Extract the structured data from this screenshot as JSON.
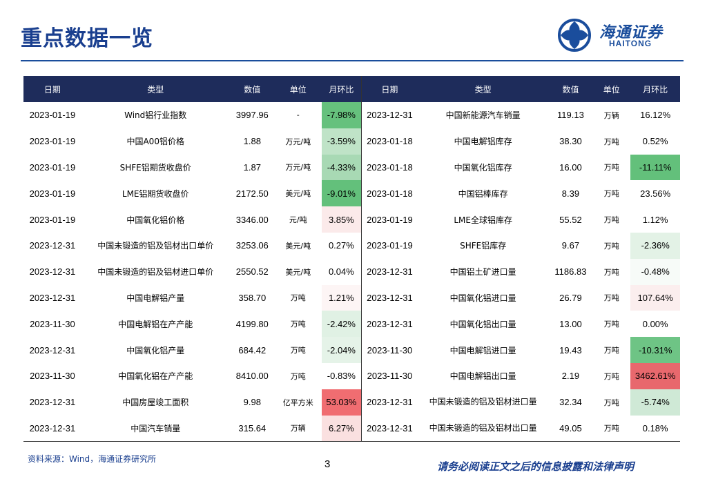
{
  "page": {
    "title": "重点数据一览",
    "logo_cn": "海通证券",
    "logo_en": "HAITONG",
    "source": "资料来源：Wind，海通证券研究所",
    "page_number": "3",
    "disclaimer": "请务必阅读正文之后的信息披露和法律声明"
  },
  "colors": {
    "header_bg": "#1e2c5b",
    "brand_blue": "#1a4d9c"
  },
  "table": {
    "headers": [
      "日期",
      "类型",
      "数值",
      "单位",
      "月环比",
      "日期",
      "类型",
      "数值",
      "单位",
      "月环比"
    ],
    "rows": [
      {
        "l": {
          "date": "2023-01-19",
          "type": "Wind铝行业指数",
          "value": "3997.96",
          "unit": "-",
          "pct": "-7.98%",
          "bg": "#66c17d"
        },
        "r": {
          "date": "2023-12-31",
          "type": "中国新能源汽车销量",
          "value": "119.13",
          "unit": "万辆",
          "pct": "16.12%",
          "bg": "#ffffff"
        }
      },
      {
        "l": {
          "date": "2023-01-19",
          "type": "中国A00铝价格",
          "value": "1.88",
          "unit": "万元/吨",
          "pct": "-3.59%",
          "bg": "#bfe3c7"
        },
        "r": {
          "date": "2023-01-18",
          "type": "中国电解铝库存",
          "value": "38.30",
          "unit": "万吨",
          "pct": "0.52%",
          "bg": "#ffffff"
        }
      },
      {
        "l": {
          "date": "2023-01-19",
          "type": "SHFE铝期货收盘价",
          "value": "1.87",
          "unit": "万元/吨",
          "pct": "-4.33%",
          "bg": "#a8d9b4"
        },
        "r": {
          "date": "2023-01-18",
          "type": "中国氧化铝库存",
          "value": "16.00",
          "unit": "万吨",
          "pct": "-11.11%",
          "bg": "#63c07b"
        }
      },
      {
        "l": {
          "date": "2023-01-19",
          "type": "LME铝期货收盘价",
          "value": "2172.50",
          "unit": "美元/吨",
          "pct": "-9.01%",
          "bg": "#63c07b"
        },
        "r": {
          "date": "2023-01-18",
          "type": "中国铝棒库存",
          "value": "8.39",
          "unit": "万吨",
          "pct": "23.56%",
          "bg": "#ffffff"
        }
      },
      {
        "l": {
          "date": "2023-01-19",
          "type": "中国氧化铝价格",
          "value": "3346.00",
          "unit": "元/吨",
          "pct": "3.85%",
          "bg": "#fbeaea"
        },
        "r": {
          "date": "2023-01-19",
          "type": "LME全球铝库存",
          "value": "55.52",
          "unit": "万吨",
          "pct": "1.12%",
          "bg": "#ffffff"
        }
      },
      {
        "l": {
          "date": "2023-12-31",
          "type": "中国未锻造的铝及铝材出口单价",
          "value": "3253.06",
          "unit": "美元/吨",
          "pct": "0.27%",
          "bg": "#ffffff"
        },
        "r": {
          "date": "2023-01-19",
          "type": "SHFE铝库存",
          "value": "9.67",
          "unit": "万吨",
          "pct": "-2.36%",
          "bg": "#e3f2e6"
        }
      },
      {
        "l": {
          "date": "2023-12-31",
          "type": "中国未锻造的铝及铝材进口单价",
          "value": "2550.52",
          "unit": "美元/吨",
          "pct": "0.04%",
          "bg": "#ffffff"
        },
        "r": {
          "date": "2023-12-31",
          "type": "中国铝土矿进口量",
          "value": "1186.83",
          "unit": "万吨",
          "pct": "-0.48%",
          "bg": "#f7fbf8"
        }
      },
      {
        "l": {
          "date": "2023-12-31",
          "type": "中国电解铝产量",
          "value": "358.70",
          "unit": "万吨",
          "pct": "1.21%",
          "bg": "#fdf5f5"
        },
        "r": {
          "date": "2023-12-31",
          "type": "中国氧化铝进口量",
          "value": "26.79",
          "unit": "万吨",
          "pct": "107.64%",
          "bg": "#fbeeee"
        }
      },
      {
        "l": {
          "date": "2023-11-30",
          "type": "中国电解铝在产产能",
          "value": "4199.80",
          "unit": "万吨",
          "pct": "-2.42%",
          "bg": "#e0f1e4"
        },
        "r": {
          "date": "2023-12-31",
          "type": "中国氧化铝出口量",
          "value": "13.00",
          "unit": "万吨",
          "pct": "0.00%",
          "bg": "#ffffff"
        }
      },
      {
        "l": {
          "date": "2023-12-31",
          "type": "中国氧化铝产量",
          "value": "684.42",
          "unit": "万吨",
          "pct": "-2.04%",
          "bg": "#e5f3e8"
        },
        "r": {
          "date": "2023-11-30",
          "type": "中国电解铝进口量",
          "value": "19.43",
          "unit": "万吨",
          "pct": "-10.31%",
          "bg": "#6ec485"
        }
      },
      {
        "l": {
          "date": "2023-11-30",
          "type": "中国氧化铝在产产能",
          "value": "8410.00",
          "unit": "万吨",
          "pct": "-0.83%",
          "bg": "#ffffff"
        },
        "r": {
          "date": "2023-11-30",
          "type": "中国电解铝出口量",
          "value": "2.19",
          "unit": "万吨",
          "pct": "3462.61%",
          "bg": "#e8686d"
        }
      },
      {
        "l": {
          "date": "2023-12-31",
          "type": "中国房屋竣工面积",
          "value": "9.98",
          "unit": "亿平方米",
          "pct": "53.03%",
          "bg": "#f06d71"
        },
        "r": {
          "date": "2023-12-31",
          "type": "中国未锻造的铝及铝材进口量",
          "value": "32.34",
          "unit": "万吨",
          "pct": "-5.74%",
          "bg": "#cfe9d6",
          "wrap": true
        }
      },
      {
        "l": {
          "date": "2023-12-31",
          "type": "中国汽车销量",
          "value": "315.64",
          "unit": "万辆",
          "pct": "6.27%",
          "bg": "#fae0e0"
        },
        "r": {
          "date": "2023-12-31",
          "type": "中国未锻造的铝及铝材出口量",
          "value": "49.05",
          "unit": "万吨",
          "pct": "0.18%",
          "bg": "#ffffff",
          "wrap": true
        }
      }
    ]
  }
}
